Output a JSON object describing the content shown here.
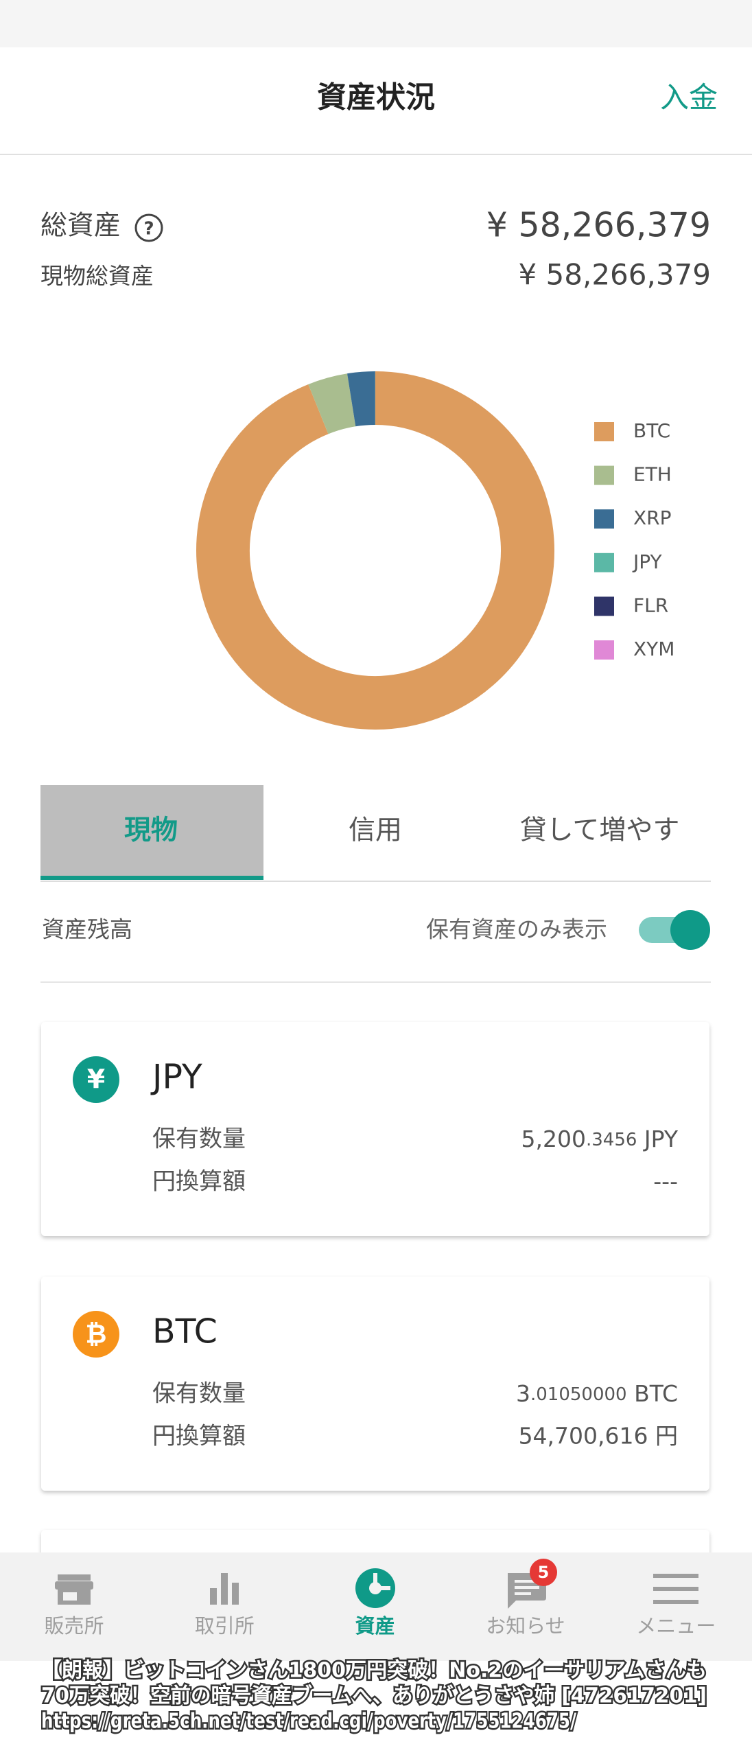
{
  "header": {
    "title": "資産状況",
    "action": "入金"
  },
  "summary": {
    "total_label": "総資産",
    "help_icon": "?",
    "total_value": "¥ 58,266,379",
    "spot_label": "現物総資産",
    "spot_value": "¥ 58,266,379"
  },
  "chart_data": {
    "type": "pie",
    "categories": [
      "BTC",
      "ETH",
      "XRP",
      "JPY",
      "FLR",
      "XYM"
    ],
    "values": [
      93.9,
      3.6,
      2.5,
      0.01,
      0,
      0
    ],
    "colors": [
      "#dd9c5e",
      "#a9bd8f",
      "#3a6d94",
      "#5bb8a6",
      "#2f3468",
      "#e088d6"
    ],
    "legend": "right"
  },
  "tabs": [
    "現物",
    "信用",
    "貸して増やす"
  ],
  "filter": {
    "label": "資産残高",
    "toggle_label": "保有資産のみ表示"
  },
  "cards": [
    {
      "icon_symbol": "¥",
      "name": "JPY",
      "quantity_label": "保有数量",
      "quantity": {
        "integer": "5,200",
        "decimal": ".3456",
        "unit": " JPY"
      },
      "value_label": "円換算額",
      "value": "---"
    },
    {
      "icon_symbol": "₿",
      "name": "BTC",
      "quantity_label": "保有数量",
      "quantity": {
        "integer": "3",
        "decimal": ".01050000",
        "unit": " BTC"
      },
      "value_label": "円換算額",
      "value": "54,700,616 円"
    }
  ],
  "bottom_nav": [
    {
      "label": "販売所"
    },
    {
      "label": "取引所"
    },
    {
      "label": "資産"
    },
    {
      "label": "お知らせ",
      "badge": "5"
    },
    {
      "label": "メニュー"
    }
  ],
  "caption": [
    "【朗報】ビットコインさん1800万円突破！No.2のイーサリアムさんも",
    "70万突破！空前の暗号資産ブームへ、ありがとうさや姉 [472617201]",
    "https://greta.5ch.net/test/read.cgi/poverty/1755124675/"
  ]
}
